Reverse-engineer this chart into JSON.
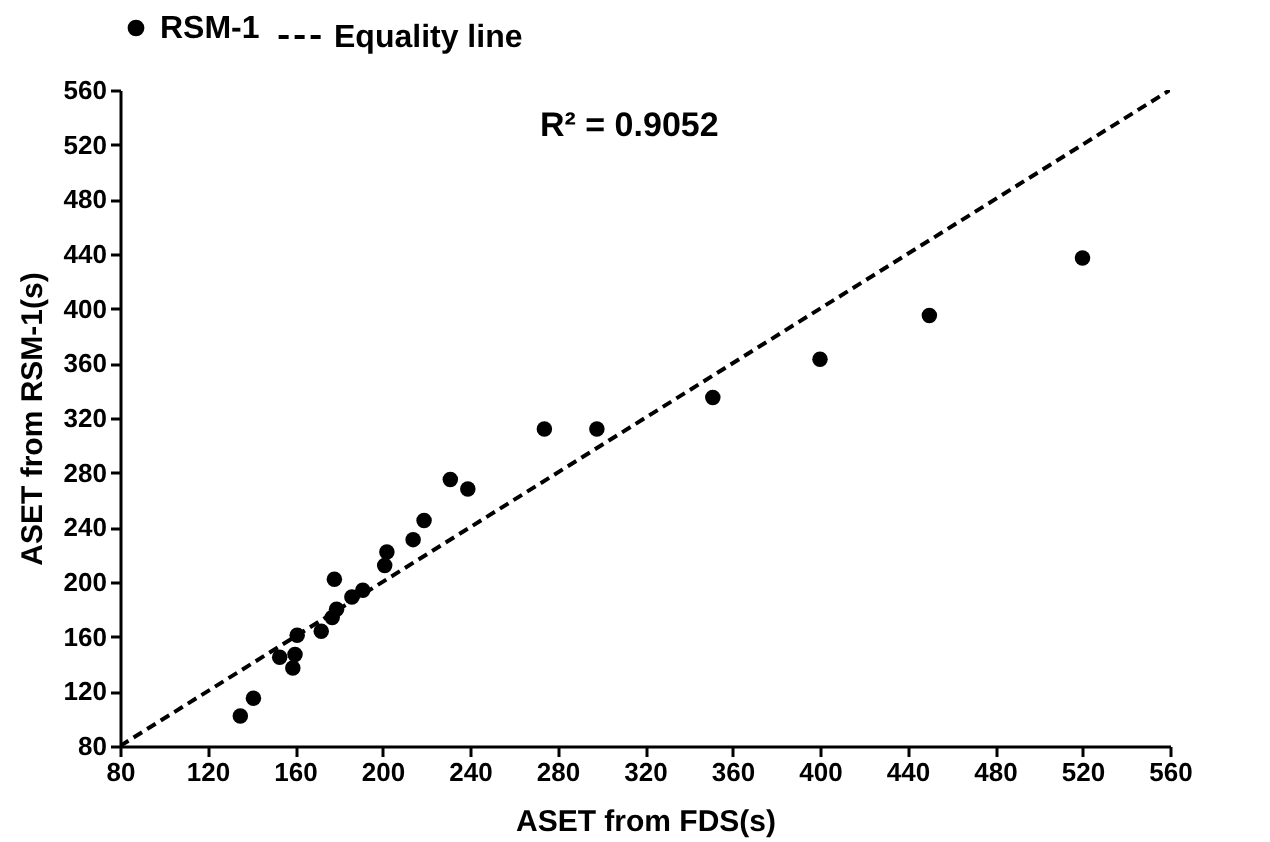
{
  "chart_data": {
    "type": "scatter",
    "xlabel": "ASET from FDS(s)",
    "ylabel": "ASET from  RSM-1(s)",
    "annotations": [
      "R² = 0.9052"
    ],
    "xlim": [
      80,
      560
    ],
    "ylim": [
      80,
      560
    ],
    "xticks": [
      80,
      120,
      160,
      200,
      240,
      280,
      320,
      360,
      400,
      440,
      480,
      520,
      560
    ],
    "yticks": [
      80,
      120,
      160,
      200,
      240,
      280,
      320,
      360,
      400,
      440,
      480,
      520,
      560
    ],
    "legend": "top",
    "series": [
      {
        "name": "RSM-1",
        "marker": "circle",
        "color": "#000000",
        "x": [
          135,
          141,
          153,
          160,
          159,
          161,
          172,
          177,
          179,
          178,
          186,
          191,
          201,
          202,
          214,
          219,
          231,
          239,
          274,
          298,
          351,
          400,
          450,
          520
        ],
        "values": [
          102,
          115,
          145,
          147,
          137,
          161,
          164,
          174,
          180,
          202,
          189,
          194,
          212,
          222,
          231,
          245,
          275,
          268,
          312,
          312,
          335,
          363,
          395,
          437
        ]
      },
      {
        "name": "Equality line",
        "type": "line",
        "line_style": "dashed",
        "color": "#000000",
        "x": [
          80,
          560
        ],
        "values": [
          80,
          560
        ]
      }
    ]
  }
}
